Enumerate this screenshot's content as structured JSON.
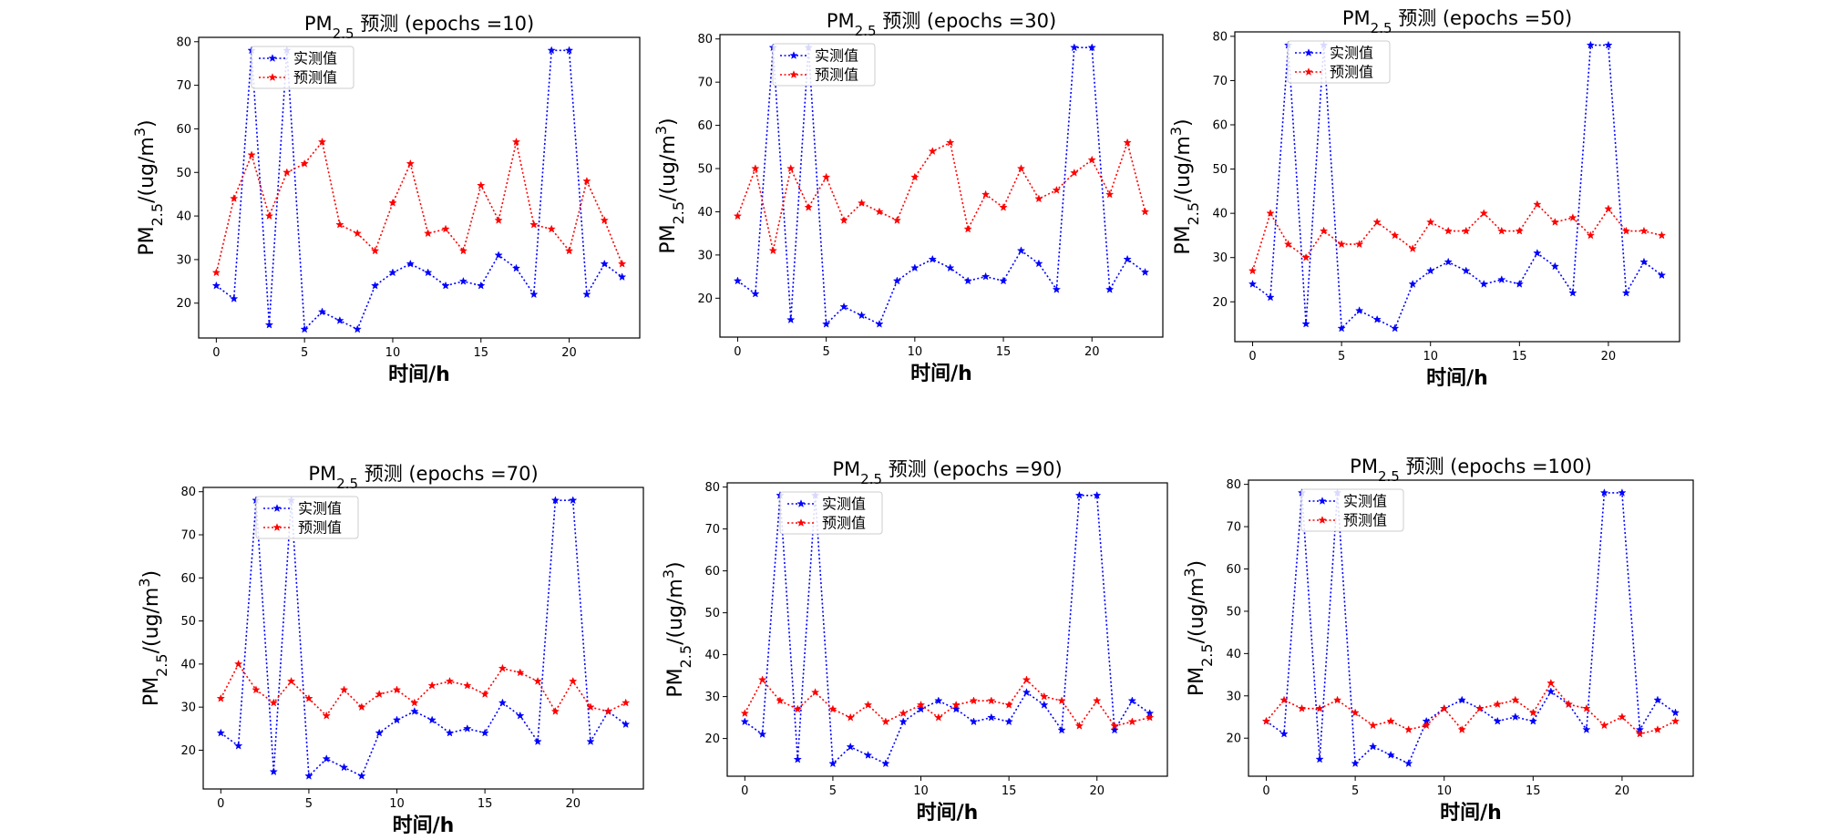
{
  "figure": {
    "background": "#ffffff",
    "series_colors": {
      "actual": "#0000ff",
      "predicted": "#ff0000"
    },
    "line_style": "dotted",
    "marker": "star",
    "legend_placement": "upper-left-inside",
    "grid": false
  },
  "chart_data": [
    {
      "type": "line",
      "title": {
        "prefix": "PM",
        "sub": "2.5",
        "suffix": " 预测 (epochs =10)"
      },
      "xlabel": "时间/h",
      "ylabel": {
        "prefix": "PM",
        "sub": "2.5",
        "middle": "/(ug/m",
        "sup": "3",
        "suffix": ")"
      },
      "xlim": [
        -1,
        24
      ],
      "ylim": [
        12,
        81
      ],
      "xticks": [
        0,
        5,
        10,
        15,
        20
      ],
      "yticks": [
        20,
        30,
        40,
        50,
        60,
        70,
        80
      ],
      "x": [
        0,
        1,
        2,
        3,
        4,
        5,
        6,
        7,
        8,
        9,
        10,
        11,
        12,
        13,
        14,
        15,
        16,
        17,
        18,
        19,
        20,
        21,
        22,
        23
      ],
      "series": [
        {
          "name": "实测值",
          "color": "#0000ff",
          "values": [
            24,
            21,
            78,
            15,
            78,
            14,
            18,
            16,
            14,
            24,
            27,
            29,
            27,
            24,
            25,
            24,
            31,
            28,
            22,
            78,
            78,
            22,
            29,
            26
          ]
        },
        {
          "name": "预测值",
          "color": "#ff0000",
          "values": [
            27,
            44,
            54,
            40,
            50,
            52,
            57,
            38,
            36,
            32,
            43,
            52,
            36,
            37,
            32,
            47,
            39,
            57,
            38,
            37,
            32,
            48,
            39,
            29
          ]
        }
      ]
    },
    {
      "type": "line",
      "title": {
        "prefix": "PM",
        "sub": "2.5",
        "suffix": " 预测 (epochs =30)"
      },
      "xlabel": "时间/h",
      "ylabel": {
        "prefix": "PM",
        "sub": "2.5",
        "middle": "/(ug/m",
        "sup": "3",
        "suffix": ")"
      },
      "xlim": [
        -1,
        24
      ],
      "ylim": [
        11,
        81
      ],
      "xticks": [
        0,
        5,
        10,
        15,
        20
      ],
      "yticks": [
        20,
        30,
        40,
        50,
        60,
        70,
        80
      ],
      "x": [
        0,
        1,
        2,
        3,
        4,
        5,
        6,
        7,
        8,
        9,
        10,
        11,
        12,
        13,
        14,
        15,
        16,
        17,
        18,
        19,
        20,
        21,
        22,
        23
      ],
      "series": [
        {
          "name": "实测值",
          "color": "#0000ff",
          "values": [
            24,
            21,
            78,
            15,
            78,
            14,
            18,
            16,
            14,
            24,
            27,
            29,
            27,
            24,
            25,
            24,
            31,
            28,
            22,
            78,
            78,
            22,
            29,
            26
          ]
        },
        {
          "name": "预测值",
          "color": "#ff0000",
          "values": [
            39,
            50,
            31,
            50,
            41,
            48,
            38,
            42,
            40,
            38,
            48,
            54,
            56,
            36,
            44,
            41,
            50,
            43,
            45,
            49,
            52,
            44,
            56,
            40
          ]
        }
      ]
    },
    {
      "type": "line",
      "title": {
        "prefix": "PM",
        "sub": "2.5",
        "suffix": " 预测 (epochs =50)"
      },
      "xlabel": "时间/h",
      "ylabel": {
        "prefix": "PM",
        "sub": "2.5",
        "middle": "/(ug/m",
        "sup": "3",
        "suffix": ")"
      },
      "xlim": [
        -1,
        24
      ],
      "ylim": [
        11,
        81
      ],
      "xticks": [
        0,
        5,
        10,
        15,
        20
      ],
      "yticks": [
        20,
        30,
        40,
        50,
        60,
        70,
        80
      ],
      "x": [
        0,
        1,
        2,
        3,
        4,
        5,
        6,
        7,
        8,
        9,
        10,
        11,
        12,
        13,
        14,
        15,
        16,
        17,
        18,
        19,
        20,
        21,
        22,
        23
      ],
      "series": [
        {
          "name": "实测值",
          "color": "#0000ff",
          "values": [
            24,
            21,
            78,
            15,
            78,
            14,
            18,
            16,
            14,
            24,
            27,
            29,
            27,
            24,
            25,
            24,
            31,
            28,
            22,
            78,
            78,
            22,
            29,
            26
          ]
        },
        {
          "name": "预测值",
          "color": "#ff0000",
          "values": [
            27,
            40,
            33,
            30,
            36,
            33,
            33,
            38,
            35,
            32,
            38,
            36,
            36,
            40,
            36,
            36,
            42,
            38,
            39,
            35,
            41,
            36,
            36,
            35
          ]
        }
      ]
    },
    {
      "type": "line",
      "title": {
        "prefix": "PM",
        "sub": "2.5",
        "suffix": " 预测 (epochs =70)"
      },
      "xlabel": "时间/h",
      "ylabel": {
        "prefix": "PM",
        "sub": "2.5",
        "middle": "/(ug/m",
        "sup": "3",
        "suffix": ")"
      },
      "xlim": [
        -1,
        24
      ],
      "ylim": [
        11,
        81
      ],
      "xticks": [
        0,
        5,
        10,
        15,
        20
      ],
      "yticks": [
        20,
        30,
        40,
        50,
        60,
        70,
        80
      ],
      "x": [
        0,
        1,
        2,
        3,
        4,
        5,
        6,
        7,
        8,
        9,
        10,
        11,
        12,
        13,
        14,
        15,
        16,
        17,
        18,
        19,
        20,
        21,
        22,
        23
      ],
      "series": [
        {
          "name": "实测值",
          "color": "#0000ff",
          "values": [
            24,
            21,
            78,
            15,
            78,
            14,
            18,
            16,
            14,
            24,
            27,
            29,
            27,
            24,
            25,
            24,
            31,
            28,
            22,
            78,
            78,
            22,
            29,
            26
          ]
        },
        {
          "name": "预测值",
          "color": "#ff0000",
          "values": [
            32,
            40,
            34,
            31,
            36,
            32,
            28,
            34,
            30,
            33,
            34,
            31,
            35,
            36,
            35,
            33,
            39,
            38,
            36,
            29,
            36,
            30,
            29,
            31
          ]
        }
      ]
    },
    {
      "type": "line",
      "title": {
        "prefix": "PM",
        "sub": "2.5",
        "suffix": " 预测 (epochs =90)"
      },
      "xlabel": "时间/h",
      "ylabel": {
        "prefix": "PM",
        "sub": "2.5",
        "middle": "/(ug/m",
        "sup": "3",
        "suffix": ")"
      },
      "xlim": [
        -1,
        24
      ],
      "ylim": [
        11,
        81
      ],
      "xticks": [
        0,
        5,
        10,
        15,
        20
      ],
      "yticks": [
        20,
        30,
        40,
        50,
        60,
        70,
        80
      ],
      "x": [
        0,
        1,
        2,
        3,
        4,
        5,
        6,
        7,
        8,
        9,
        10,
        11,
        12,
        13,
        14,
        15,
        16,
        17,
        18,
        19,
        20,
        21,
        22,
        23
      ],
      "series": [
        {
          "name": "实测值",
          "color": "#0000ff",
          "values": [
            24,
            21,
            78,
            15,
            78,
            14,
            18,
            16,
            14,
            24,
            27,
            29,
            27,
            24,
            25,
            24,
            31,
            28,
            22,
            78,
            78,
            22,
            29,
            26
          ]
        },
        {
          "name": "预测值",
          "color": "#ff0000",
          "values": [
            26,
            34,
            29,
            27,
            31,
            27,
            25,
            28,
            24,
            26,
            28,
            25,
            28,
            29,
            29,
            28,
            34,
            30,
            29,
            23,
            29,
            23,
            24,
            25
          ]
        }
      ]
    },
    {
      "type": "line",
      "title": {
        "prefix": "PM",
        "sub": "2.5",
        "suffix": " 预测 (epochs =100)"
      },
      "xlabel": "时间/h",
      "ylabel": {
        "prefix": "PM",
        "sub": "2.5",
        "middle": "/(ug/m",
        "sup": "3",
        "suffix": ")"
      },
      "xlim": [
        -1,
        24
      ],
      "ylim": [
        11,
        81
      ],
      "xticks": [
        0,
        5,
        10,
        15,
        20
      ],
      "yticks": [
        20,
        30,
        40,
        50,
        60,
        70,
        80
      ],
      "x": [
        0,
        1,
        2,
        3,
        4,
        5,
        6,
        7,
        8,
        9,
        10,
        11,
        12,
        13,
        14,
        15,
        16,
        17,
        18,
        19,
        20,
        21,
        22,
        23
      ],
      "series": [
        {
          "name": "实测值",
          "color": "#0000ff",
          "values": [
            24,
            21,
            78,
            15,
            78,
            14,
            18,
            16,
            14,
            24,
            27,
            29,
            27,
            24,
            25,
            24,
            31,
            28,
            22,
            78,
            78,
            22,
            29,
            26
          ]
        },
        {
          "name": "预测值",
          "color": "#ff0000",
          "values": [
            24,
            29,
            27,
            27,
            29,
            26,
            23,
            24,
            22,
            23,
            27,
            22,
            27,
            28,
            29,
            26,
            33,
            28,
            27,
            23,
            25,
            21,
            22,
            24
          ]
        }
      ]
    }
  ]
}
